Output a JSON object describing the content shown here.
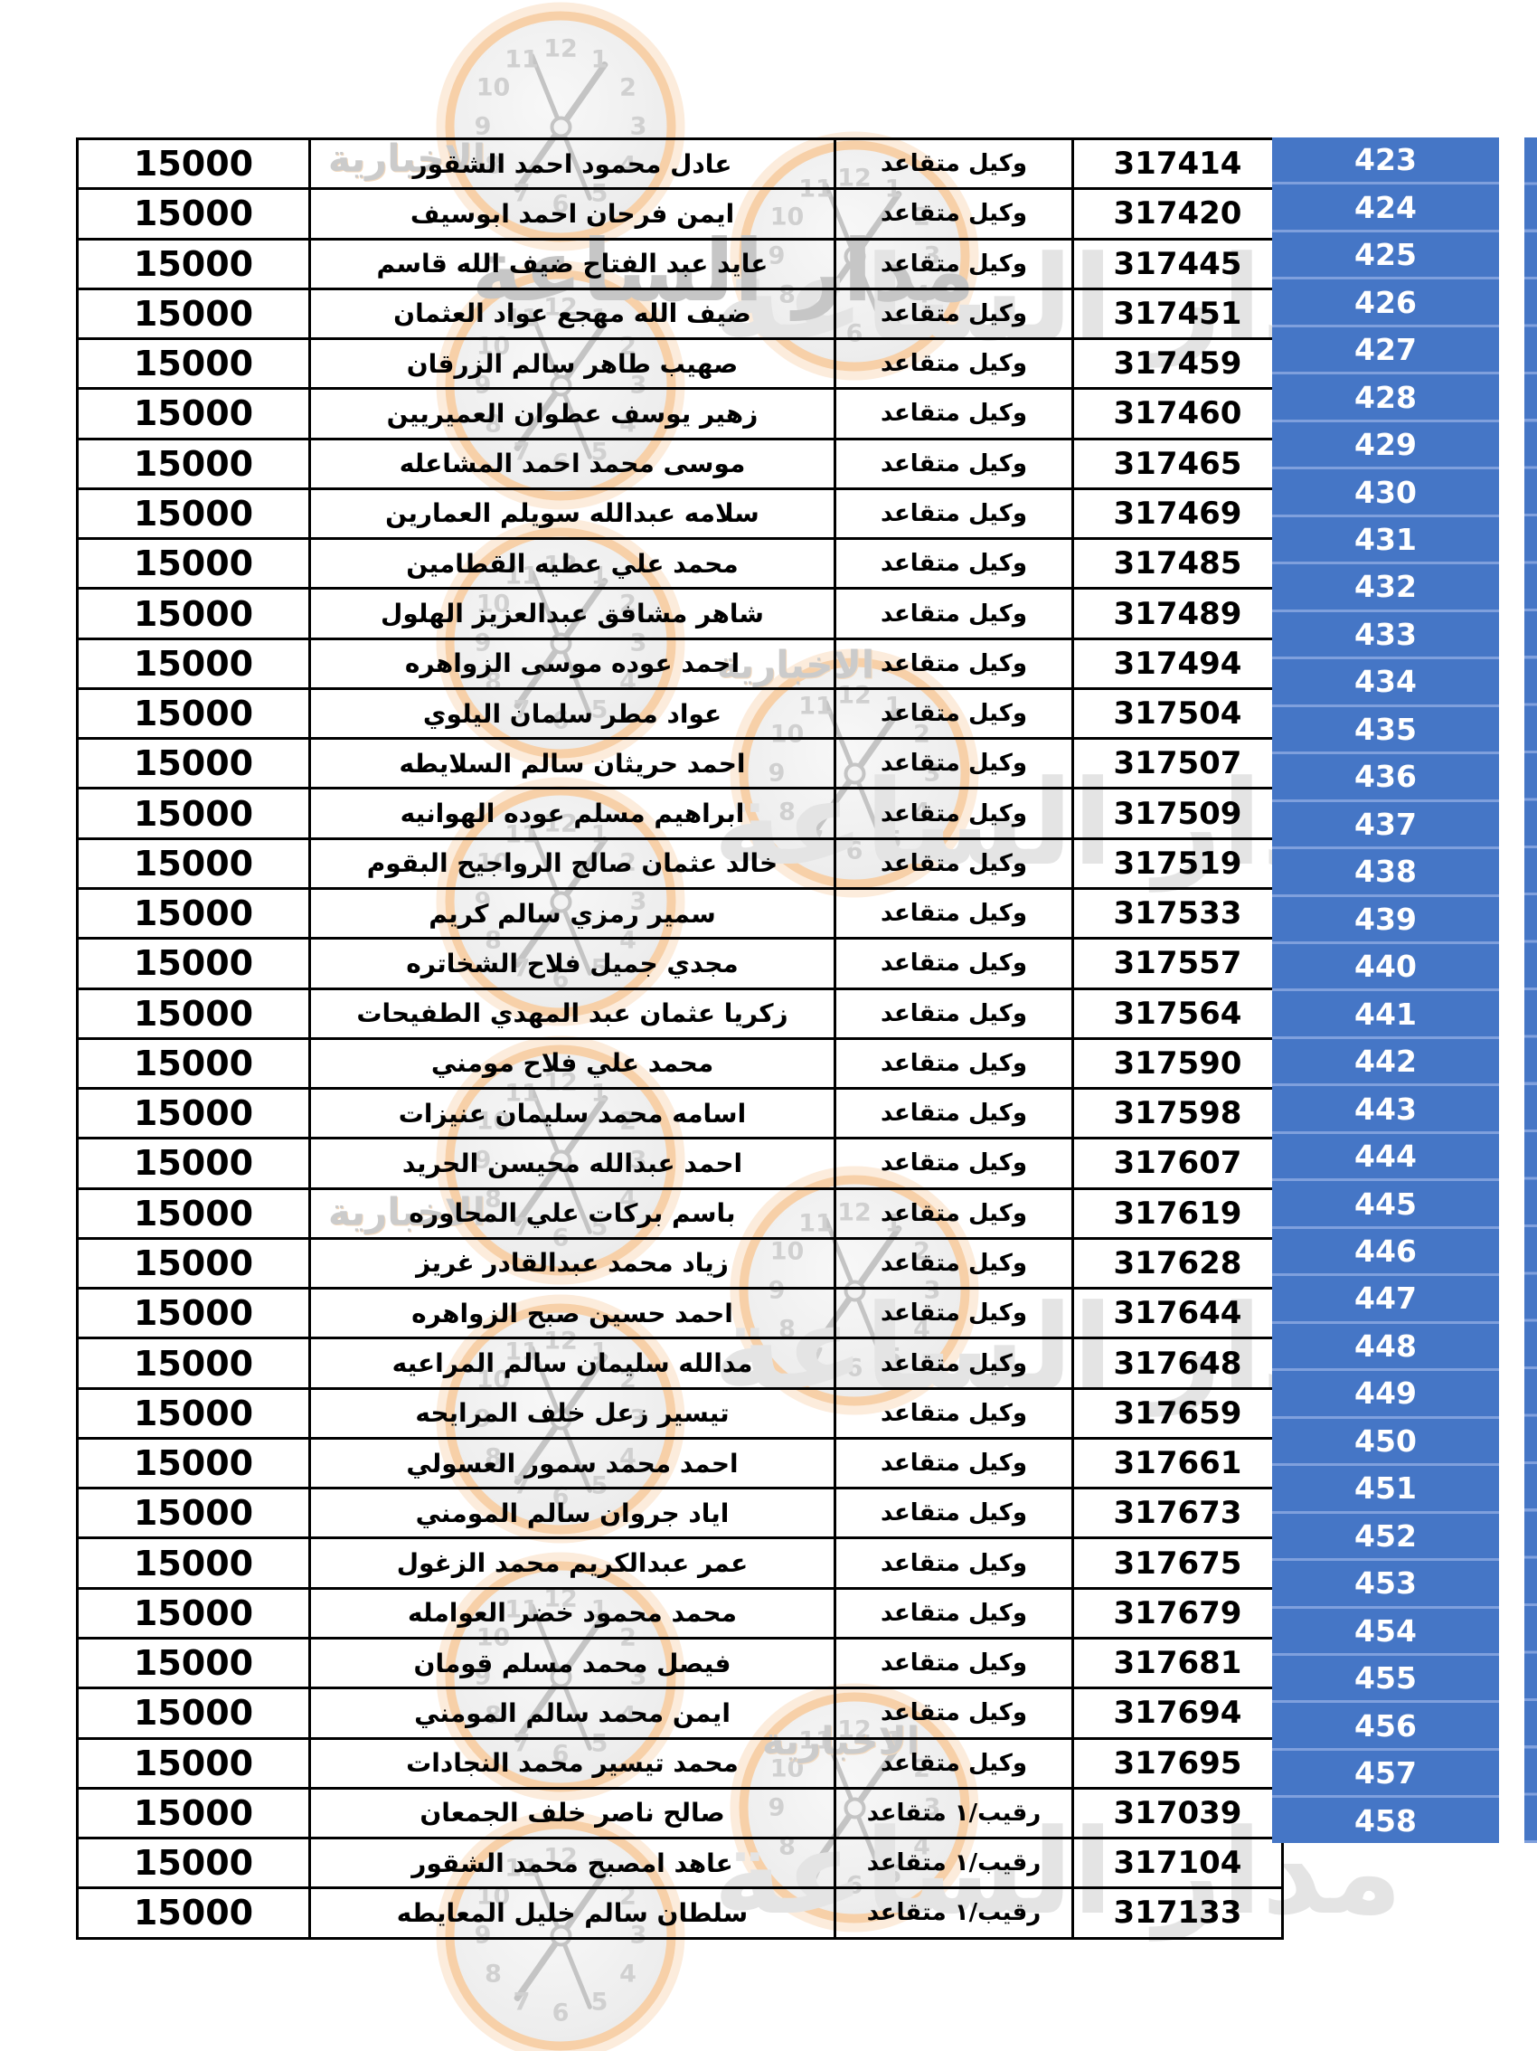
{
  "colors": {
    "serial_bg": "#4576c6",
    "serial_divider": "#7fa0dd",
    "border": "#000000",
    "text": "#000000",
    "serial_text": "#ffffff",
    "watermark_orange": "#f7d0a8",
    "watermark_gray": "#d0d0d0"
  },
  "watermark": {
    "brand": "مدار الساعة",
    "brand_sub": "الاخبارية",
    "clock_numerals": [
      "12",
      "1",
      "2",
      "3",
      "4",
      "5",
      "6",
      "7",
      "8",
      "9",
      "10",
      "11"
    ]
  },
  "table": {
    "columns": [
      "amount",
      "name",
      "rank",
      "number",
      "serial"
    ],
    "rows": [
      {
        "serial": "423",
        "number": "317414",
        "rank": "وكيل متقاعد",
        "name": "عادل محمود احمد الشقور",
        "amount": "15000"
      },
      {
        "serial": "424",
        "number": "317420",
        "rank": "وكيل متقاعد",
        "name": "ايمن فرحان احمد ابوسيف",
        "amount": "15000"
      },
      {
        "serial": "425",
        "number": "317445",
        "rank": "وكيل متقاعد",
        "name": "عايد عبد الفتاح ضيف الله قاسم",
        "amount": "15000"
      },
      {
        "serial": "426",
        "number": "317451",
        "rank": "وكيل متقاعد",
        "name": "ضيف الله مهجع عواد العثمان",
        "amount": "15000"
      },
      {
        "serial": "427",
        "number": "317459",
        "rank": "وكيل متقاعد",
        "name": "صهيب طاهر سالم الزرقان",
        "amount": "15000"
      },
      {
        "serial": "428",
        "number": "317460",
        "rank": "وكيل متقاعد",
        "name": "زهير يوسف عطوان العميريين",
        "amount": "15000"
      },
      {
        "serial": "429",
        "number": "317465",
        "rank": "وكيل متقاعد",
        "name": "موسى محمد احمد المشاعله",
        "amount": "15000"
      },
      {
        "serial": "430",
        "number": "317469",
        "rank": "وكيل متقاعد",
        "name": "سلامه عبدالله سويلم العمارين",
        "amount": "15000"
      },
      {
        "serial": "431",
        "number": "317485",
        "rank": "وكيل متقاعد",
        "name": "محمد علي عطيه القطامين",
        "amount": "15000"
      },
      {
        "serial": "432",
        "number": "317489",
        "rank": "وكيل متقاعد",
        "name": "شاهر مشافق عبدالعزيز الهلول",
        "amount": "15000"
      },
      {
        "serial": "433",
        "number": "317494",
        "rank": "وكيل متقاعد",
        "name": "احمد عوده موسى الزواهره",
        "amount": "15000"
      },
      {
        "serial": "434",
        "number": "317504",
        "rank": "وكيل متقاعد",
        "name": "عواد مطر سلمان اليلوي",
        "amount": "15000"
      },
      {
        "serial": "435",
        "number": "317507",
        "rank": "وكيل متقاعد",
        "name": "احمد حريثان سالم السلايطه",
        "amount": "15000"
      },
      {
        "serial": "436",
        "number": "317509",
        "rank": "وكيل متقاعد",
        "name": "ابراهيم مسلم عوده الهوانيه",
        "amount": "15000"
      },
      {
        "serial": "437",
        "number": "317519",
        "rank": "وكيل متقاعد",
        "name": "خالد عثمان صالح الرواجيح البقوم",
        "amount": "15000"
      },
      {
        "serial": "438",
        "number": "317533",
        "rank": "وكيل متقاعد",
        "name": "سمير رمزي سالم كريم",
        "amount": "15000"
      },
      {
        "serial": "439",
        "number": "317557",
        "rank": "وكيل متقاعد",
        "name": "مجدي جميل فلاح الشخاتره",
        "amount": "15000"
      },
      {
        "serial": "440",
        "number": "317564",
        "rank": "وكيل متقاعد",
        "name": "زكريا عثمان عبد المهدي الطفيحات",
        "amount": "15000"
      },
      {
        "serial": "441",
        "number": "317590",
        "rank": "وكيل متقاعد",
        "name": "محمد علي فلاح مومني",
        "amount": "15000"
      },
      {
        "serial": "442",
        "number": "317598",
        "rank": "وكيل متقاعد",
        "name": "اسامه محمد سليمان عنيزات",
        "amount": "15000"
      },
      {
        "serial": "443",
        "number": "317607",
        "rank": "وكيل متقاعد",
        "name": "احمد عبدالله محيسن الحريد",
        "amount": "15000"
      },
      {
        "serial": "444",
        "number": "317619",
        "rank": "وكيل متقاعد",
        "name": "باسم بركات علي المحاوره",
        "amount": "15000"
      },
      {
        "serial": "445",
        "number": "317628",
        "rank": "وكيل متقاعد",
        "name": "زياد محمد عبدالقادر غريز",
        "amount": "15000"
      },
      {
        "serial": "446",
        "number": "317644",
        "rank": "وكيل متقاعد",
        "name": "احمد حسين صبح الزواهره",
        "amount": "15000"
      },
      {
        "serial": "447",
        "number": "317648",
        "rank": "وكيل متقاعد",
        "name": "مدالله سليمان سالم المراعيه",
        "amount": "15000"
      },
      {
        "serial": "448",
        "number": "317659",
        "rank": "وكيل متقاعد",
        "name": "تيسير زعل خلف المرايحه",
        "amount": "15000"
      },
      {
        "serial": "449",
        "number": "317661",
        "rank": "وكيل متقاعد",
        "name": "احمد محمد سمور العسولي",
        "amount": "15000"
      },
      {
        "serial": "450",
        "number": "317673",
        "rank": "وكيل متقاعد",
        "name": "اياد جروان سالم المومني",
        "amount": "15000"
      },
      {
        "serial": "451",
        "number": "317675",
        "rank": "وكيل متقاعد",
        "name": "عمر عبدالكريم محمد الزغول",
        "amount": "15000"
      },
      {
        "serial": "452",
        "number": "317679",
        "rank": "وكيل متقاعد",
        "name": "محمد محمود خضر العوامله",
        "amount": "15000"
      },
      {
        "serial": "453",
        "number": "317681",
        "rank": "وكيل متقاعد",
        "name": "فيصل محمد مسلم قومان",
        "amount": "15000"
      },
      {
        "serial": "454",
        "number": "317694",
        "rank": "وكيل متقاعد",
        "name": "ايمن محمد سالم المومني",
        "amount": "15000"
      },
      {
        "serial": "455",
        "number": "317695",
        "rank": "وكيل متقاعد",
        "name": "محمد تيسير محمد النجادات",
        "amount": "15000"
      },
      {
        "serial": "456",
        "number": "317039",
        "rank": "رقيب/١ متقاعد",
        "name": "صالح ناصر خلف الجمعان",
        "amount": "15000"
      },
      {
        "serial": "457",
        "number": "317104",
        "rank": "رقيب/١ متقاعد",
        "name": "عاهد امصبح محمد الشقور",
        "amount": "15000"
      },
      {
        "serial": "458",
        "number": "317133",
        "rank": "رقيب/١ متقاعد",
        "name": "سلطان سالم خليل المعايطه",
        "amount": "15000"
      }
    ]
  }
}
